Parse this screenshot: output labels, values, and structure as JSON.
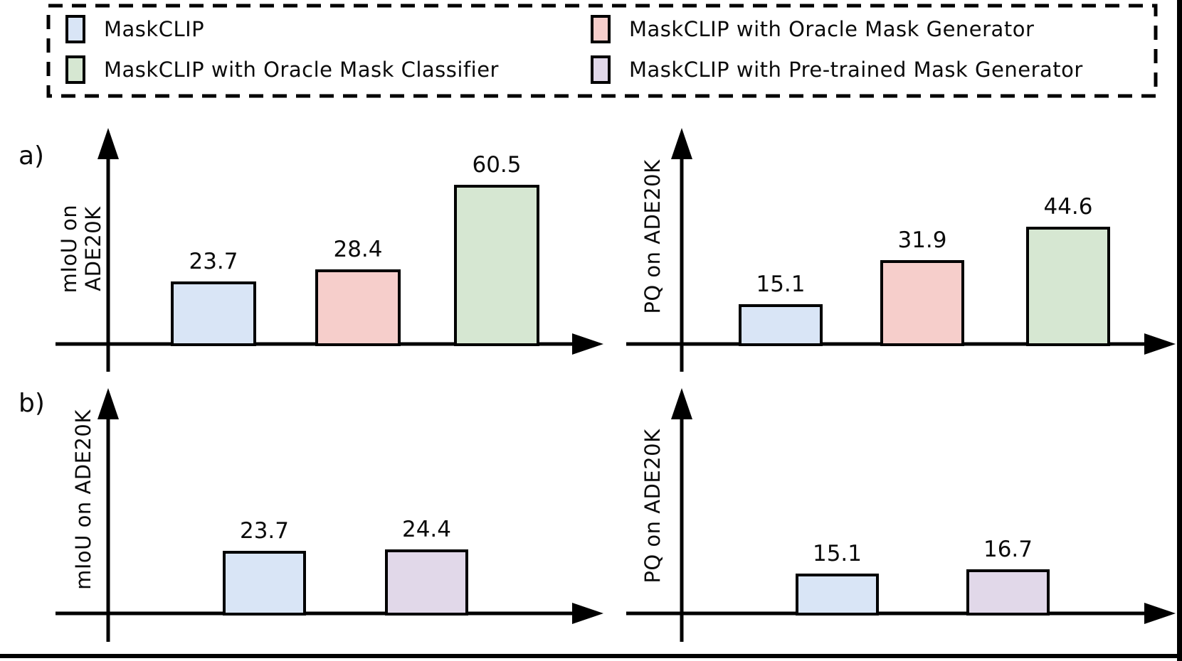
{
  "figure": {
    "panel_a_label": "a)",
    "panel_b_label": "b)"
  },
  "colors": {
    "maskclip_blue": "#d9e5f6",
    "oracle_classifier_green": "#d6e7d2",
    "oracle_generator_pink": "#f6cecb",
    "pretrained_generator_purple": "#e1d8e9",
    "line_black": "#000000"
  },
  "legend": {
    "items": [
      {
        "label": "MaskCLIP",
        "color": "#d9e5f6"
      },
      {
        "label": "MaskCLIP with Oracle Mask Classifier",
        "color": "#d6e7d2"
      },
      {
        "label": "MaskCLIP with Oracle Mask Generator",
        "color": "#f6cecb"
      },
      {
        "label": "MaskCLIP with Pre-trained Mask Generator",
        "color": "#e1d8e9"
      }
    ]
  },
  "chart_data": [
    {
      "id": "a-left",
      "type": "bar",
      "panel": "a",
      "title": "",
      "xlabel": "",
      "ylabel": "mIoU on ADE20K",
      "ylabel_lines": [
        "mIoU on",
        "ADE20K"
      ],
      "categories": [
        "MaskCLIP",
        "MaskCLIP with Oracle Mask Generator",
        "MaskCLIP with Oracle Mask Classifier"
      ],
      "values": [
        23.7,
        28.4,
        60.5
      ],
      "colors": [
        "#d9e5f6",
        "#f6cecb",
        "#d6e7d2"
      ],
      "ylim": [
        0,
        80
      ],
      "grid": false,
      "data_labels": true,
      "legend_position": "top"
    },
    {
      "id": "a-right",
      "type": "bar",
      "panel": "a",
      "title": "",
      "xlabel": "",
      "ylabel": "PQ on ADE20K",
      "categories": [
        "MaskCLIP",
        "MaskCLIP with Oracle Mask Generator",
        "MaskCLIP with Oracle Mask Classifier"
      ],
      "values": [
        15.1,
        31.9,
        44.6
      ],
      "colors": [
        "#d9e5f6",
        "#f6cecb",
        "#d6e7d2"
      ],
      "ylim": [
        0,
        80
      ],
      "grid": false,
      "data_labels": true,
      "legend_position": "top"
    },
    {
      "id": "b-left",
      "type": "bar",
      "panel": "b",
      "title": "",
      "xlabel": "",
      "ylabel": "mIoU on ADE20K",
      "categories": [
        "MaskCLIP",
        "MaskCLIP with Pre-trained Mask Generator"
      ],
      "values": [
        23.7,
        24.4
      ],
      "colors": [
        "#d9e5f6",
        "#e1d8e9"
      ],
      "ylim": [
        0,
        85
      ],
      "grid": false,
      "data_labels": true,
      "legend_position": "top"
    },
    {
      "id": "b-right",
      "type": "bar",
      "panel": "b",
      "title": "",
      "xlabel": "",
      "ylabel": "PQ on ADE20K",
      "categories": [
        "MaskCLIP",
        "MaskCLIP with Pre-trained Mask Generator"
      ],
      "values": [
        15.1,
        16.7
      ],
      "colors": [
        "#d9e5f6",
        "#e1d8e9"
      ],
      "ylim": [
        0,
        85
      ],
      "grid": false,
      "data_labels": true,
      "legend_position": "top"
    }
  ]
}
